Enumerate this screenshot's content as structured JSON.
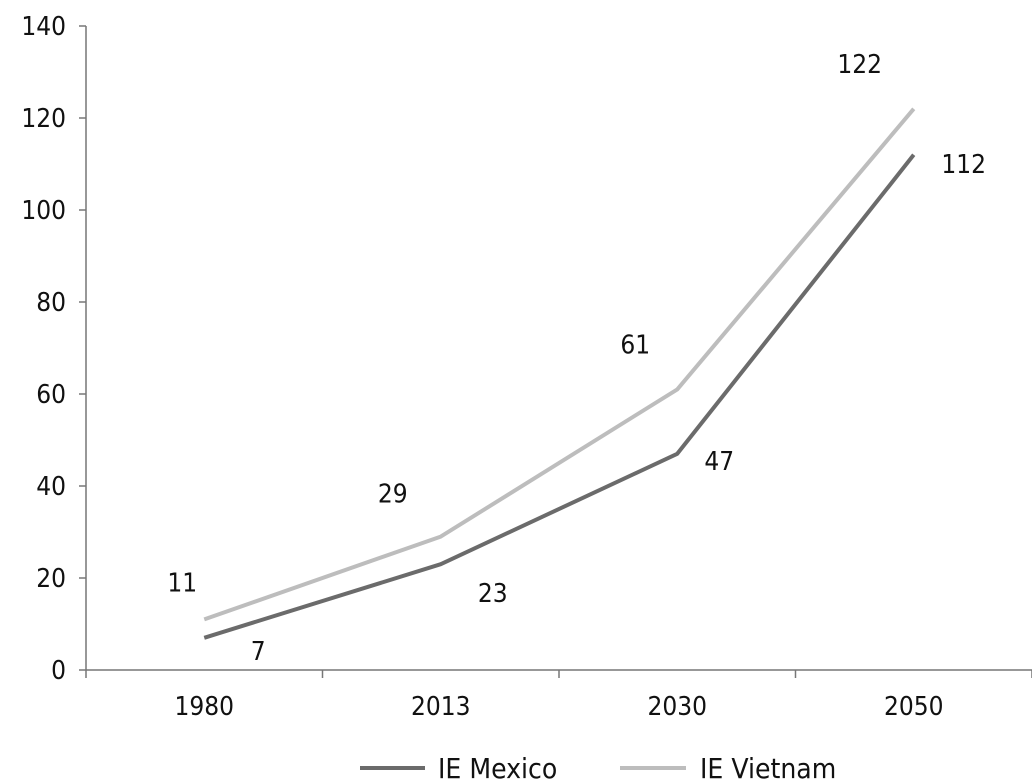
{
  "chart_data": {
    "type": "line",
    "title": "",
    "xlabel": "",
    "ylabel": "",
    "categories": [
      "1980",
      "2013",
      "2030",
      "2050"
    ],
    "ylim": [
      0,
      140
    ],
    "yticks": [
      0,
      20,
      40,
      60,
      80,
      100,
      120,
      140
    ],
    "grid": false,
    "legend": "bottom",
    "series": [
      {
        "name": "IE Mexico",
        "values": [
          7,
          23,
          47,
          112
        ],
        "color": "#6b6b6b",
        "labels": [
          "7",
          "23",
          "47",
          "112"
        ]
      },
      {
        "name": "IE Vietnam",
        "values": [
          11,
          29,
          61,
          122
        ],
        "color": "#bdbdbd",
        "labels": [
          "11",
          "29",
          "61",
          "122"
        ]
      }
    ]
  }
}
